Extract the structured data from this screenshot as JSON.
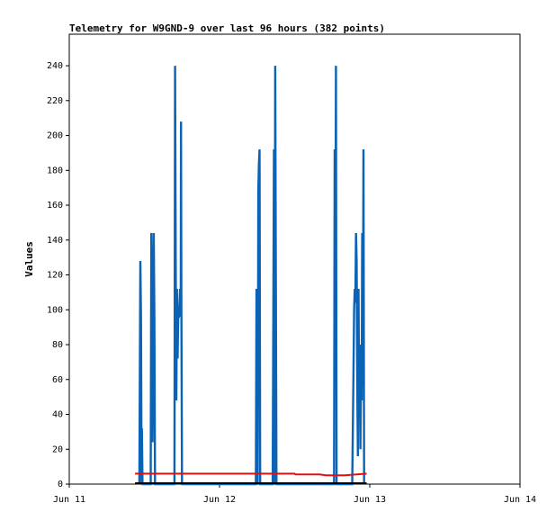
{
  "chart_data": {
    "type": "line",
    "title": "Telemetry for W9GND-9 over last 96 hours (382 points)",
    "xlabel": "",
    "ylabel": "Values",
    "x_ticks": [
      "Jun 11",
      "Jun 12",
      "Jun 13",
      "Jun 14"
    ],
    "x_range": [
      "2024-06-11T00:00",
      "2024-06-14T00:00"
    ],
    "ylim": [
      0,
      255
    ],
    "y_ticks": [
      0,
      20,
      40,
      60,
      80,
      100,
      120,
      140,
      160,
      180,
      200,
      220,
      240
    ],
    "grid": false,
    "legend": "none",
    "x_hours_from_start_note": "x values are hours since Jun 11 00:00",
    "series": [
      {
        "color": "#0b63b5",
        "points": [
          [
            11.2,
            0
          ],
          [
            11.35,
            128
          ],
          [
            11.45,
            96
          ],
          [
            11.55,
            0
          ],
          [
            11.6,
            32
          ],
          [
            11.7,
            0
          ],
          [
            13.0,
            0
          ],
          [
            13.1,
            144
          ],
          [
            13.2,
            120
          ],
          [
            13.3,
            24
          ],
          [
            13.4,
            72
          ],
          [
            13.5,
            144
          ],
          [
            13.6,
            96
          ],
          [
            13.7,
            0
          ],
          [
            16.8,
            0
          ],
          [
            16.9,
            240
          ],
          [
            17.0,
            128
          ],
          [
            17.1,
            48
          ],
          [
            17.2,
            112
          ],
          [
            17.3,
            72
          ],
          [
            17.4,
            96
          ],
          [
            17.5,
            96
          ],
          [
            17.7,
            112
          ],
          [
            17.8,
            96
          ],
          [
            17.85,
            208
          ],
          [
            17.9,
            104
          ],
          [
            18.0,
            0
          ],
          [
            29.8,
            0
          ],
          [
            29.9,
            112
          ],
          [
            30.0,
            56
          ],
          [
            30.1,
            0
          ],
          [
            30.15,
            80
          ],
          [
            30.2,
            168
          ],
          [
            30.3,
            184
          ],
          [
            30.4,
            192
          ],
          [
            30.5,
            0
          ],
          [
            32.5,
            0
          ],
          [
            32.6,
            96
          ],
          [
            32.7,
            192
          ],
          [
            32.8,
            0
          ],
          [
            32.9,
            240
          ],
          [
            33.0,
            120
          ],
          [
            33.1,
            0
          ],
          [
            42.3,
            0
          ],
          [
            42.4,
            192
          ],
          [
            42.5,
            88
          ],
          [
            42.6,
            240
          ],
          [
            42.7,
            0
          ],
          [
            45.2,
            0
          ],
          [
            45.3,
            32
          ],
          [
            45.4,
            64
          ],
          [
            45.5,
            100
          ],
          [
            45.6,
            112
          ],
          [
            45.7,
            104
          ],
          [
            45.8,
            144
          ],
          [
            45.9,
            128
          ],
          [
            46.0,
            56
          ],
          [
            46.1,
            16
          ],
          [
            46.2,
            112
          ],
          [
            46.3,
            40
          ],
          [
            46.4,
            80
          ],
          [
            46.5,
            20
          ],
          [
            46.6,
            64
          ],
          [
            46.7,
            48
          ],
          [
            46.8,
            144
          ],
          [
            46.9,
            56
          ],
          [
            47.0,
            192
          ],
          [
            47.1,
            0
          ]
        ]
      },
      {
        "color": "#e01010",
        "points": [
          [
            10.5,
            6
          ],
          [
            11.0,
            6
          ],
          [
            20.0,
            6
          ],
          [
            30.0,
            6
          ],
          [
            36.0,
            6
          ],
          [
            36.1,
            5.5
          ],
          [
            40.0,
            5.5
          ],
          [
            41.0,
            5
          ],
          [
            44.0,
            5
          ],
          [
            47.5,
            6
          ]
        ]
      },
      {
        "color": "#000000",
        "points": [
          [
            10.5,
            0.5
          ],
          [
            47.5,
            0.5
          ]
        ]
      }
    ]
  }
}
